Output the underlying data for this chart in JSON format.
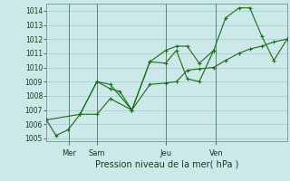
{
  "xlabel": "Pression niveau de la mer( hPa )",
  "bg_color": "#cce8e8",
  "grid_color": "#99cccc",
  "line_color": "#1a6b1a",
  "marker": "+",
  "marker_size": 3,
  "marker_lw": 0.8,
  "line_width": 0.8,
  "ylim": [
    1004.8,
    1014.5
  ],
  "yticks": [
    1005,
    1006,
    1007,
    1008,
    1009,
    1010,
    1011,
    1012,
    1013,
    1014
  ],
  "day_ticks": [
    0.095,
    0.21,
    0.495,
    0.705
  ],
  "day_labels": [
    "Mer",
    "Sam",
    "Jeu",
    "Ven"
  ],
  "line1_x": [
    0.0,
    0.04,
    0.09,
    0.14,
    0.21,
    0.265,
    0.305,
    0.355,
    0.43,
    0.495,
    0.54,
    0.585,
    0.635,
    0.695,
    0.745,
    0.8,
    0.845,
    0.895,
    0.945,
    1.0
  ],
  "line1_y": [
    1006.3,
    1005.2,
    1005.6,
    1006.7,
    1009.0,
    1008.5,
    1008.3,
    1007.0,
    1010.4,
    1011.2,
    1011.5,
    1011.5,
    1010.3,
    1011.2,
    1013.5,
    1014.2,
    1014.2,
    1012.2,
    1010.5,
    1012.0
  ],
  "line2_x": [
    0.0,
    0.14,
    0.21,
    0.265,
    0.355,
    0.43,
    0.495,
    0.54,
    0.585,
    0.635,
    0.695,
    0.745,
    0.8,
    0.845,
    0.895,
    0.945,
    1.0
  ],
  "line2_y": [
    1006.3,
    1006.7,
    1006.7,
    1007.8,
    1007.0,
    1008.8,
    1008.9,
    1009.0,
    1009.8,
    1009.9,
    1010.0,
    1010.5,
    1011.0,
    1011.3,
    1011.5,
    1011.8,
    1012.0
  ],
  "line3_x": [
    0.14,
    0.21,
    0.265,
    0.355,
    0.43,
    0.495,
    0.54,
    0.585,
    0.635,
    0.695
  ],
  "line3_y": [
    1006.7,
    1009.0,
    1008.8,
    1007.0,
    1010.4,
    1010.3,
    1011.2,
    1009.2,
    1009.0,
    1011.2
  ],
  "figsize": [
    3.2,
    2.0
  ],
  "dpi": 100
}
